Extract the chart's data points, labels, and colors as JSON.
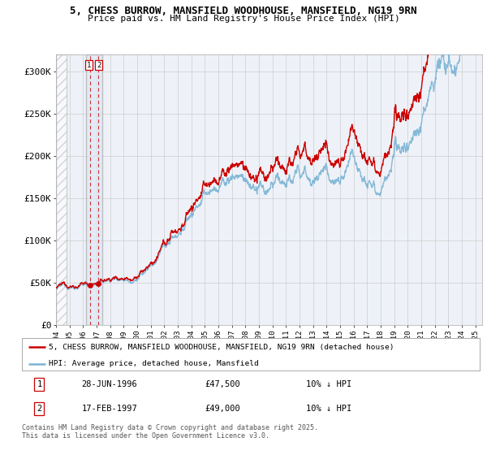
{
  "title_line1": "5, CHESS BURROW, MANSFIELD WOODHOUSE, MANSFIELD, NG19 9RN",
  "title_line2": "Price paid vs. HM Land Registry's House Price Index (HPI)",
  "ylim": [
    0,
    320000
  ],
  "xlim_start": 1994.0,
  "xlim_end": 2025.5,
  "hpi_color": "#7ab3d4",
  "price_color": "#cc0000",
  "transaction1_date": 1996.49,
  "transaction2_date": 1997.12,
  "transaction1_price": 47500,
  "transaction2_price": 49000,
  "legend_label_red": "5, CHESS BURROW, MANSFIELD WOODHOUSE, MANSFIELD, NG19 9RN (detached house)",
  "legend_label_blue": "HPI: Average price, detached house, Mansfield",
  "note1_date": "28-JUN-1996",
  "note1_price": "£47,500",
  "note1_hpi": "10% ↓ HPI",
  "note2_date": "17-FEB-1997",
  "note2_price": "£49,000",
  "note2_hpi": "10% ↓ HPI",
  "footer": "Contains HM Land Registry data © Crown copyright and database right 2025.\nThis data is licensed under the Open Government Licence v3.0.",
  "yticks": [
    0,
    50000,
    100000,
    150000,
    200000,
    250000,
    300000
  ],
  "ytick_labels": [
    "£0",
    "£50K",
    "£100K",
    "£150K",
    "£200K",
    "£250K",
    "£300K"
  ],
  "background_color": "#eef2f8"
}
